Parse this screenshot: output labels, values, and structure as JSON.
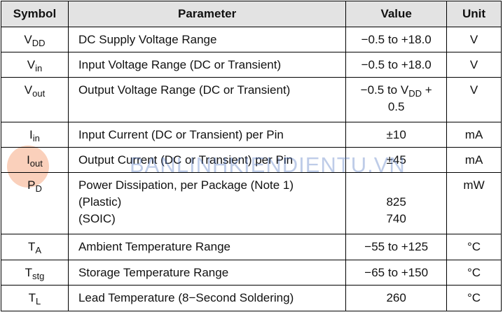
{
  "table": {
    "header": [
      "Symbol",
      "Parameter",
      "Value",
      "Unit"
    ],
    "rows": [
      {
        "symbol": "V",
        "sub": "DD",
        "parameter": [
          "DC Supply Voltage Range"
        ],
        "value": [
          "−0.5 to +18.0"
        ],
        "unit": "V"
      },
      {
        "symbol": "V",
        "sub": "in",
        "parameter": [
          "Input Voltage Range (DC or Transient)"
        ],
        "value": [
          "−0.5 to +18.0"
        ],
        "unit": "V"
      },
      {
        "symbol": "V",
        "sub": "out",
        "parameter": [
          "Output Voltage Range (DC or Transient)"
        ],
        "value": [
          {
            "pre": "−0.5 to V",
            "sub": "DD",
            "post": " +"
          },
          "0.5"
        ],
        "unit": "V"
      },
      {
        "symbol": "I",
        "sub": "in",
        "parameter": [
          "Input Current (DC or Transient) per Pin"
        ],
        "value": [
          "±10"
        ],
        "unit": "mA"
      },
      {
        "symbol": "I",
        "sub": "out",
        "parameter": [
          "Output Current (DC or Transient) per Pin"
        ],
        "value": [
          "±45"
        ],
        "unit": "mA"
      },
      {
        "symbol": "P",
        "sub": "D",
        "parameter": [
          "Power Dissipation, per Package (Note 1)",
          "(Plastic)",
          "(SOIC)"
        ],
        "value": [
          "825",
          "740"
        ],
        "unit": "mW"
      },
      {
        "symbol": "T",
        "sub": "A",
        "parameter": [
          "Ambient Temperature Range"
        ],
        "value": [
          "−55 to +125"
        ],
        "unit": "°C"
      },
      {
        "symbol": "T",
        "sub": "stg",
        "parameter": [
          "Storage Temperature Range"
        ],
        "value": [
          "−65 to +150"
        ],
        "unit": "°C"
      },
      {
        "symbol": "T",
        "sub": "L",
        "parameter": [
          "Lead Temperature (8−Second Soldering)"
        ],
        "value": [
          "260"
        ],
        "unit": "°C"
      }
    ]
  },
  "watermark": "BANLINHKIENDIENTU.VN"
}
